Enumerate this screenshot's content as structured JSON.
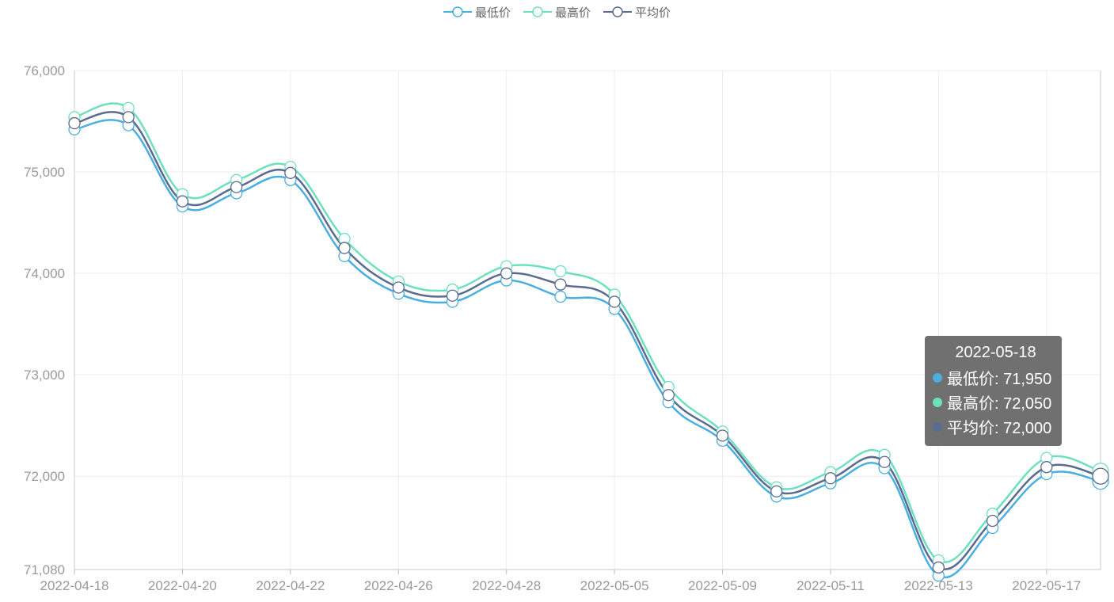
{
  "legend": [
    {
      "label": "最低价",
      "color": "#4aaedf"
    },
    {
      "label": "最高价",
      "color": "#6ee0c0"
    },
    {
      "label": "平均价",
      "color": "#5b6a8f"
    }
  ],
  "tooltip": {
    "date": "2022-05-18",
    "rows": [
      {
        "label": "最低价: 71,950",
        "color": "#4aaedf"
      },
      {
        "label": "最高价: 72,050",
        "color": "#6ee0c0"
      },
      {
        "label": "平均价: 72,000",
        "color": "#5b6a8f"
      }
    ]
  },
  "chart_data": {
    "type": "line",
    "smooth": true,
    "x": [
      "2022-04-18",
      "2022-04-19",
      "2022-04-20",
      "2022-04-21",
      "2022-04-22",
      "2022-04-25",
      "2022-04-26",
      "2022-04-27",
      "2022-04-28",
      "2022-04-29",
      "2022-05-05",
      "2022-05-06",
      "2022-05-09",
      "2022-05-10",
      "2022-05-11",
      "2022-05-12",
      "2022-05-13",
      "2022-05-16",
      "2022-05-17",
      "2022-05-18"
    ],
    "x_tick_labels": [
      "2022-04-18",
      "2022-04-20",
      "2022-04-22",
      "2022-04-26",
      "2022-04-28",
      "2022-05-05",
      "2022-05-09",
      "2022-05-11",
      "2022-05-13",
      "2022-05-17"
    ],
    "y_ticks": [
      "76,000",
      "75,000",
      "74,000",
      "73,000",
      "72,000",
      "71,080"
    ],
    "ylim": [
      71080,
      76000
    ],
    "grid": true,
    "legend_position": "top-center",
    "series": [
      {
        "name": "最低价",
        "color": "#4aaedf",
        "values": [
          75420,
          75460,
          74660,
          74790,
          74920,
          74170,
          73800,
          73720,
          73930,
          73770,
          73650,
          72730,
          72350,
          71800,
          71930,
          72080,
          71020,
          71490,
          72020,
          71950
        ]
      },
      {
        "name": "最高价",
        "color": "#6ee0c0",
        "values": [
          75540,
          75630,
          74780,
          74920,
          75050,
          74340,
          73920,
          73840,
          74070,
          74020,
          73790,
          72880,
          72440,
          71890,
          72040,
          72210,
          71170,
          71630,
          72180,
          72050
        ]
      },
      {
        "name": "平均价",
        "color": "#5b6a8f",
        "values": [
          75480,
          75540,
          74710,
          74850,
          74990,
          74250,
          73860,
          73780,
          74000,
          73890,
          73720,
          72800,
          72400,
          71850,
          71980,
          72140,
          71100,
          71560,
          72090,
          72000
        ]
      }
    ]
  }
}
